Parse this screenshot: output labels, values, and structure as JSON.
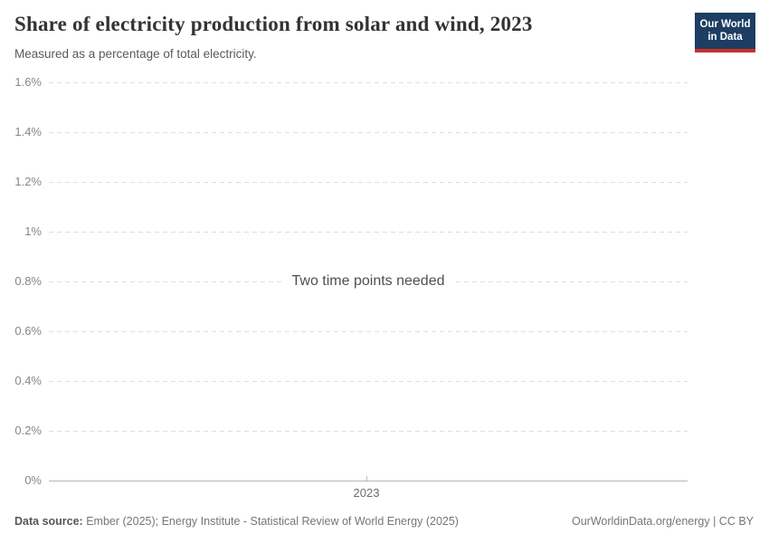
{
  "header": {
    "title": "Share of electricity production from solar and wind, 2023",
    "subtitle": "Measured as a percentage of total electricity.",
    "logo": {
      "line1": "Our World",
      "line2": "in Data",
      "bg_color": "#1d3d63",
      "accent_color": "#c9302c"
    }
  },
  "chart_data": {
    "type": "line",
    "title": "Share of electricity production from solar and wind, 2023",
    "subtitle": "Measured as a percentage of total electricity.",
    "message": "Two time points needed",
    "series": [],
    "legend": "none",
    "grid": "horizontal-dashed",
    "x_axis": {
      "ticks": [
        {
          "value": 2023,
          "label": "2023"
        }
      ]
    },
    "y_axis": {
      "unit": "%",
      "range": [
        0,
        1.6
      ],
      "ticks": [
        {
          "value": 0,
          "label": "0%"
        },
        {
          "value": 0.2,
          "label": "0.2%"
        },
        {
          "value": 0.4,
          "label": "0.4%"
        },
        {
          "value": 0.6,
          "label": "0.6%"
        },
        {
          "value": 0.8,
          "label": "0.8%"
        },
        {
          "value": 1.0,
          "label": "1%"
        },
        {
          "value": 1.2,
          "label": "1.2%"
        },
        {
          "value": 1.4,
          "label": "1.4%"
        },
        {
          "value": 1.6,
          "label": "1.6%"
        }
      ]
    }
  },
  "footer": {
    "source_label": "Data source:",
    "source_text": " Ember (2025); Energy Institute - Statistical Review of World Energy (2025)",
    "credit": "OurWorldinData.org/energy | CC BY"
  },
  "colors": {
    "title": "#333333",
    "subtitle": "#595959",
    "tick_label": "#878787",
    "gridline": "#dedede",
    "axis_line": "#b5b5b5",
    "message": "#4f4f4f",
    "footer": "#767676"
  }
}
